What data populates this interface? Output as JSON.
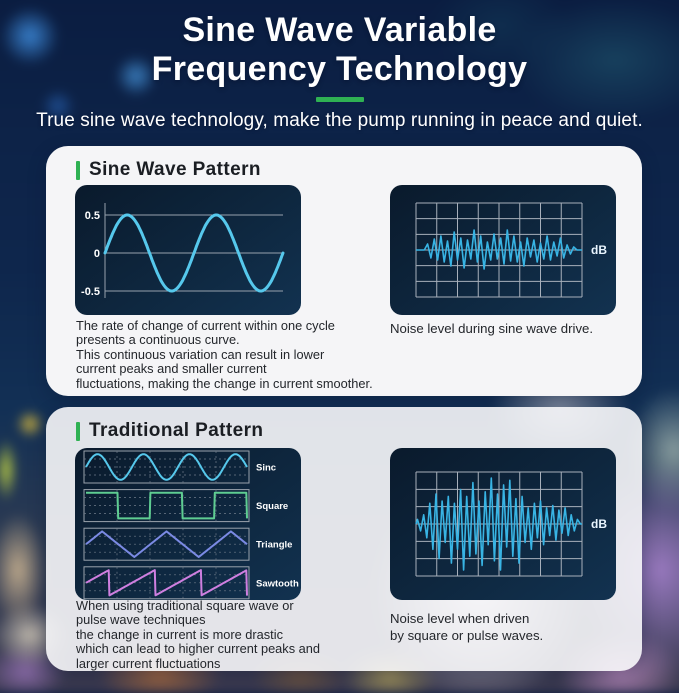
{
  "header": {
    "title_line1": "Sine Wave Variable",
    "title_line2": "Frequency Technology",
    "subtitle": "True sine wave technology, make the pump running in peace and quiet.",
    "accent_color": "#2fb153"
  },
  "cards": [
    {
      "title": "Sine Wave Pattern",
      "description": "The rate of change of current within one cycle\npresents a continuous curve.\nThis continuous variation can result in lower\ncurrent peaks and smaller current\nfluctuations, making the change in current smoother.",
      "caption": "Noise level during sine wave drive."
    },
    {
      "title": "Traditional Pattern",
      "description": "When using traditional square wave or\npulse wave techniques\nthe change in current is more drastic\nwhich can lead to higher current peaks and\nlarger current fluctuations",
      "caption": "Noise level when driven\nby square or pulse waves."
    }
  ],
  "chart_data": [
    {
      "id": "sine_wave_pattern",
      "type": "line",
      "wave": "sine",
      "cycles": 2,
      "amplitude": 0.5,
      "y_ticks": [
        "0.5",
        "0",
        "-0.5"
      ],
      "y_range": [
        -0.75,
        0.75
      ],
      "color": "#56c8ec",
      "grid_color": "#97a1ad",
      "bg_color": "#0d2238"
    },
    {
      "id": "sine_drive_noise",
      "type": "line",
      "unit_label": "dB",
      "grid_cols": 8,
      "grid_rows": 6,
      "color": "#38b4e4",
      "grid_color": "#a8b0bb",
      "values": [
        0,
        0,
        0,
        0.3,
        -0.4,
        0.55,
        -0.5,
        0.7,
        -0.6,
        0.45,
        -0.8,
        0.9,
        -0.5,
        0.6,
        -0.9,
        0.5,
        -0.45,
        1.0,
        -0.6,
        0.7,
        -0.95,
        0.4,
        -0.5,
        0.8,
        -0.45,
        0.6,
        -0.7,
        1.0,
        -0.55,
        0.7,
        -0.6,
        0.4,
        -0.8,
        0.6,
        -0.35,
        0.5,
        -0.6,
        0.35,
        -0.45,
        0.7,
        -0.5,
        0.4,
        -0.3,
        0.6,
        -0.4,
        0.25,
        -0.2,
        0.15,
        0,
        0
      ]
    },
    {
      "id": "traditional_waveforms",
      "type": "line",
      "grid_color": "#9aa3ad",
      "series": [
        {
          "name": "Sinc",
          "wave": "sine",
          "cycles": 3.5,
          "color": "#56c8ec"
        },
        {
          "name": "Square",
          "wave": "square",
          "cycles": 2.5,
          "color": "#5fcd92"
        },
        {
          "name": "Triangle",
          "wave": "triangle",
          "cycles": 2.5,
          "color": "#7b8ae4"
        },
        {
          "name": "Sawtooth",
          "wave": "sawtooth",
          "cycles": 3.5,
          "color": "#cf7fe0"
        }
      ]
    },
    {
      "id": "traditional_drive_noise",
      "type": "line",
      "unit_label": "dB",
      "grid_cols": 8,
      "grid_rows": 6,
      "color": "#38b4e4",
      "grid_color": "#a8b0bb",
      "values": [
        0.1,
        -0.15,
        0.2,
        -0.3,
        0.45,
        -0.55,
        0.65,
        -0.75,
        0.5,
        -0.4,
        0.6,
        -0.85,
        0.45,
        -0.55,
        0.75,
        -1.0,
        0.6,
        -0.7,
        0.9,
        -0.65,
        0.5,
        -0.9,
        0.7,
        -0.45,
        1.0,
        -0.8,
        0.65,
        -1.0,
        0.85,
        -0.5,
        0.95,
        -0.7,
        0.55,
        -0.85,
        0.6,
        -0.4,
        0.35,
        -0.55,
        0.45,
        -0.3,
        0.5,
        -0.45,
        0.35,
        -0.25,
        0.4,
        -0.35,
        0.3,
        -0.2,
        0.35,
        -0.25,
        0.2,
        -0.15,
        0.1,
        0
      ]
    }
  ]
}
